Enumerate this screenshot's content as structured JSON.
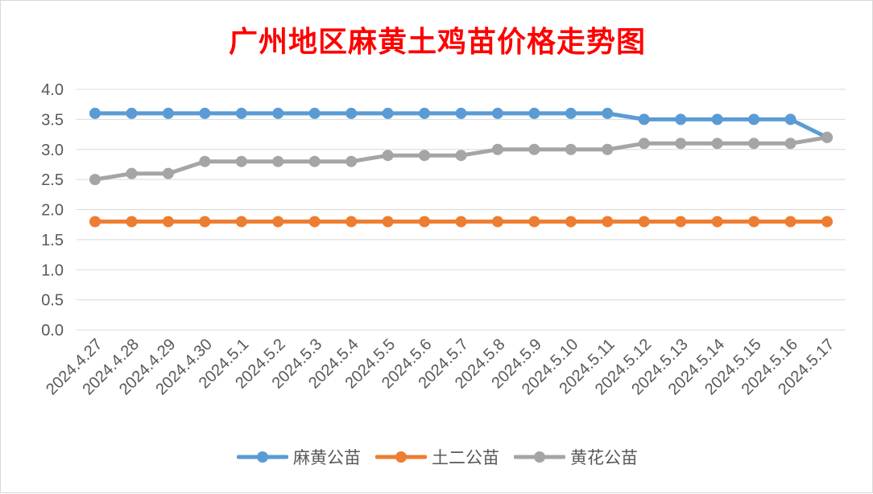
{
  "chart_data": {
    "type": "line",
    "title": "广州地区麻黄土鸡苗价格走势图",
    "categories": [
      "2024.4.27",
      "2024.4.28",
      "2024.4.29",
      "2024.4.30",
      "2024.5.1",
      "2024.5.2",
      "2024.5.3",
      "2024.5.4",
      "2024.5.5",
      "2024.5.6",
      "2024.5.7",
      "2024.5.8",
      "2024.5.9",
      "2024.5.10",
      "2024.5.11",
      "2024.5.12",
      "2024.5.13",
      "2024.5.14",
      "2024.5.15",
      "2024.5.16",
      "2024.5.17"
    ],
    "series": [
      {
        "name": "麻黄公苗",
        "color": "#5b9bd5",
        "values": [
          3.6,
          3.6,
          3.6,
          3.6,
          3.6,
          3.6,
          3.6,
          3.6,
          3.6,
          3.6,
          3.6,
          3.6,
          3.6,
          3.6,
          3.6,
          3.5,
          3.5,
          3.5,
          3.5,
          3.5,
          3.2
        ]
      },
      {
        "name": "土二公苗",
        "color": "#ed7d31",
        "values": [
          1.8,
          1.8,
          1.8,
          1.8,
          1.8,
          1.8,
          1.8,
          1.8,
          1.8,
          1.8,
          1.8,
          1.8,
          1.8,
          1.8,
          1.8,
          1.8,
          1.8,
          1.8,
          1.8,
          1.8,
          1.8
        ]
      },
      {
        "name": "黄花公苗",
        "color": "#a5a5a5",
        "values": [
          2.5,
          2.6,
          2.6,
          2.8,
          2.8,
          2.8,
          2.8,
          2.8,
          2.9,
          2.9,
          2.9,
          3.0,
          3.0,
          3.0,
          3.0,
          3.1,
          3.1,
          3.1,
          3.1,
          3.1,
          3.2
        ]
      }
    ],
    "yticks": [
      "0.0",
      "0.5",
      "1.0",
      "1.5",
      "2.0",
      "2.5",
      "3.0",
      "3.5",
      "4.0"
    ],
    "ylim": [
      0,
      4
    ],
    "grid": true,
    "legend_position": "bottom"
  }
}
